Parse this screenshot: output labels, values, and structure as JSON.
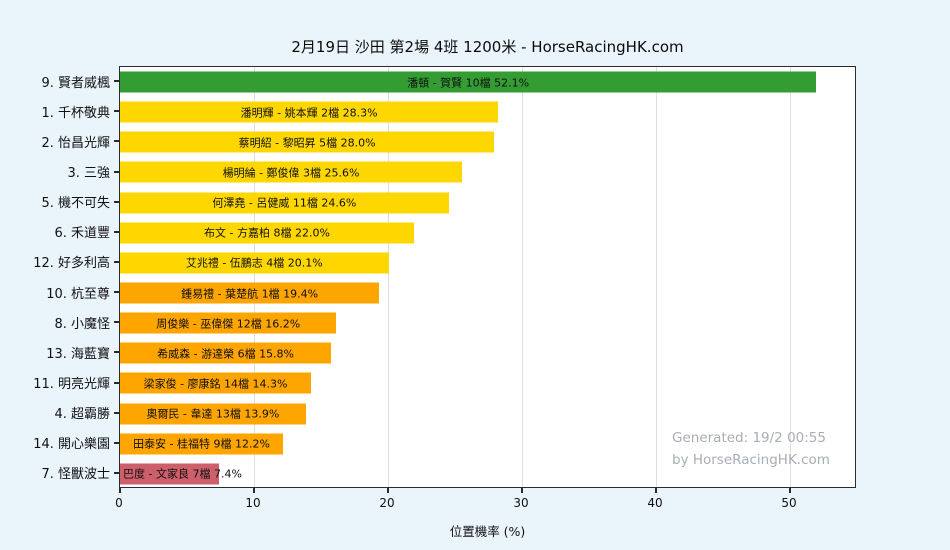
{
  "title": "2月19日  沙田  第2場  4班  1200米 - HorseRacingHK.com",
  "xlabel": "位置機率 (%)",
  "xlim": [
    0,
    55
  ],
  "x_ticks": [
    0,
    10,
    20,
    30,
    40,
    50
  ],
  "watermark": {
    "generated": "Generated: 19/2 00:55",
    "site": "by HorseRacingHK.com"
  },
  "colors": {
    "background": "#eaf4fb",
    "plot_background": "#ffffff",
    "grid": "#dedede",
    "axis": "#2b2b2b",
    "watermark": "#a8aeb5",
    "tier_green": "#339c33",
    "tier_yellow": "#ffd700",
    "tier_orange": "#ffa500",
    "tier_red": "#cd5f6a"
  },
  "chart_data": {
    "type": "bar",
    "orientation": "horizontal",
    "title": "2月19日  沙田  第2場  4班  1200米 - HorseRacingHK.com",
    "xlabel": "位置機率 (%)",
    "ylabel": "",
    "xlim": [
      0,
      55
    ],
    "grid": true,
    "legend": false,
    "categories": [
      "9. 賢者威楓",
      "1. 千杯敬典",
      "2. 怡昌光輝",
      "3. 三強",
      "5. 機不可失",
      "6. 禾道豐",
      "12. 好多利高",
      "10. 杭至尊",
      "8. 小魔怪",
      "13. 海藍寶",
      "11. 明亮光輝",
      "4. 超霸勝",
      "14. 開心樂園",
      "7. 怪獸波士"
    ],
    "values": [
      52.1,
      28.3,
      28.0,
      25.6,
      24.6,
      22.0,
      20.1,
      19.4,
      16.2,
      15.8,
      14.3,
      13.9,
      12.2,
      7.4
    ],
    "bars": [
      {
        "horse": "9. 賢者威楓",
        "label": "潘頓 - 賀賢 10檔  52.1%",
        "jockey_trainer": "潘頓 - 賀賢",
        "gate": "10檔",
        "pct": 52.1,
        "tier": "tier_green"
      },
      {
        "horse": "1. 千杯敬典",
        "label": "潘明輝 - 姚本輝 2檔  28.3%",
        "jockey_trainer": "潘明輝 - 姚本輝",
        "gate": "2檔",
        "pct": 28.3,
        "tier": "tier_yellow"
      },
      {
        "horse": "2. 怡昌光輝",
        "label": "蔡明紹 - 黎昭昇 5檔  28.0%",
        "jockey_trainer": "蔡明紹 - 黎昭昇",
        "gate": "5檔",
        "pct": 28.0,
        "tier": "tier_yellow"
      },
      {
        "horse": "3. 三強",
        "label": "楊明綸 - 鄭俊偉 3檔  25.6%",
        "jockey_trainer": "楊明綸 - 鄭俊偉",
        "gate": "3檔",
        "pct": 25.6,
        "tier": "tier_yellow"
      },
      {
        "horse": "5. 機不可失",
        "label": "何澤堯 - 呂健威 11檔  24.6%",
        "jockey_trainer": "何澤堯 - 呂健威",
        "gate": "11檔",
        "pct": 24.6,
        "tier": "tier_yellow"
      },
      {
        "horse": "6. 禾道豐",
        "label": "布文 - 方嘉柏 8檔  22.0%",
        "jockey_trainer": "布文 - 方嘉柏",
        "gate": "8檔",
        "pct": 22.0,
        "tier": "tier_yellow"
      },
      {
        "horse": "12. 好多利高",
        "label": "艾兆禮 - 伍鵬志 4檔  20.1%",
        "jockey_trainer": "艾兆禮 - 伍鵬志",
        "gate": "4檔",
        "pct": 20.1,
        "tier": "tier_yellow"
      },
      {
        "horse": "10. 杭至尊",
        "label": "鍾易禮 - 葉楚航 1檔  19.4%",
        "jockey_trainer": "鍾易禮 - 葉楚航",
        "gate": "1檔",
        "pct": 19.4,
        "tier": "tier_orange"
      },
      {
        "horse": "8. 小魔怪",
        "label": "周俊樂 - 巫偉傑 12檔  16.2%",
        "jockey_trainer": "周俊樂 - 巫偉傑",
        "gate": "12檔",
        "pct": 16.2,
        "tier": "tier_orange"
      },
      {
        "horse": "13. 海藍寶",
        "label": "希威森 - 游達榮 6檔  15.8%",
        "jockey_trainer": "希威森 - 游達榮",
        "gate": "6檔",
        "pct": 15.8,
        "tier": "tier_orange"
      },
      {
        "horse": "11. 明亮光輝",
        "label": "梁家俊 - 廖康銘 14檔  14.3%",
        "jockey_trainer": "梁家俊 - 廖康銘",
        "gate": "14檔",
        "pct": 14.3,
        "tier": "tier_orange"
      },
      {
        "horse": "4. 超霸勝",
        "label": "奧爾民 - 韋達 13檔  13.9%",
        "jockey_trainer": "奧爾民 - 韋達",
        "gate": "13檔",
        "pct": 13.9,
        "tier": "tier_orange"
      },
      {
        "horse": "14. 開心樂園",
        "label": "田泰安 - 桂福特 9檔  12.2%",
        "jockey_trainer": "田泰安 - 桂福特",
        "gate": "9檔",
        "pct": 12.2,
        "tier": "tier_orange"
      },
      {
        "horse": "7. 怪獸波士",
        "label": "巴度 - 文家良 7檔  7.4%",
        "jockey_trainer": "巴度 - 文家良",
        "gate": "7檔",
        "pct": 7.4,
        "tier": "tier_red"
      }
    ]
  }
}
